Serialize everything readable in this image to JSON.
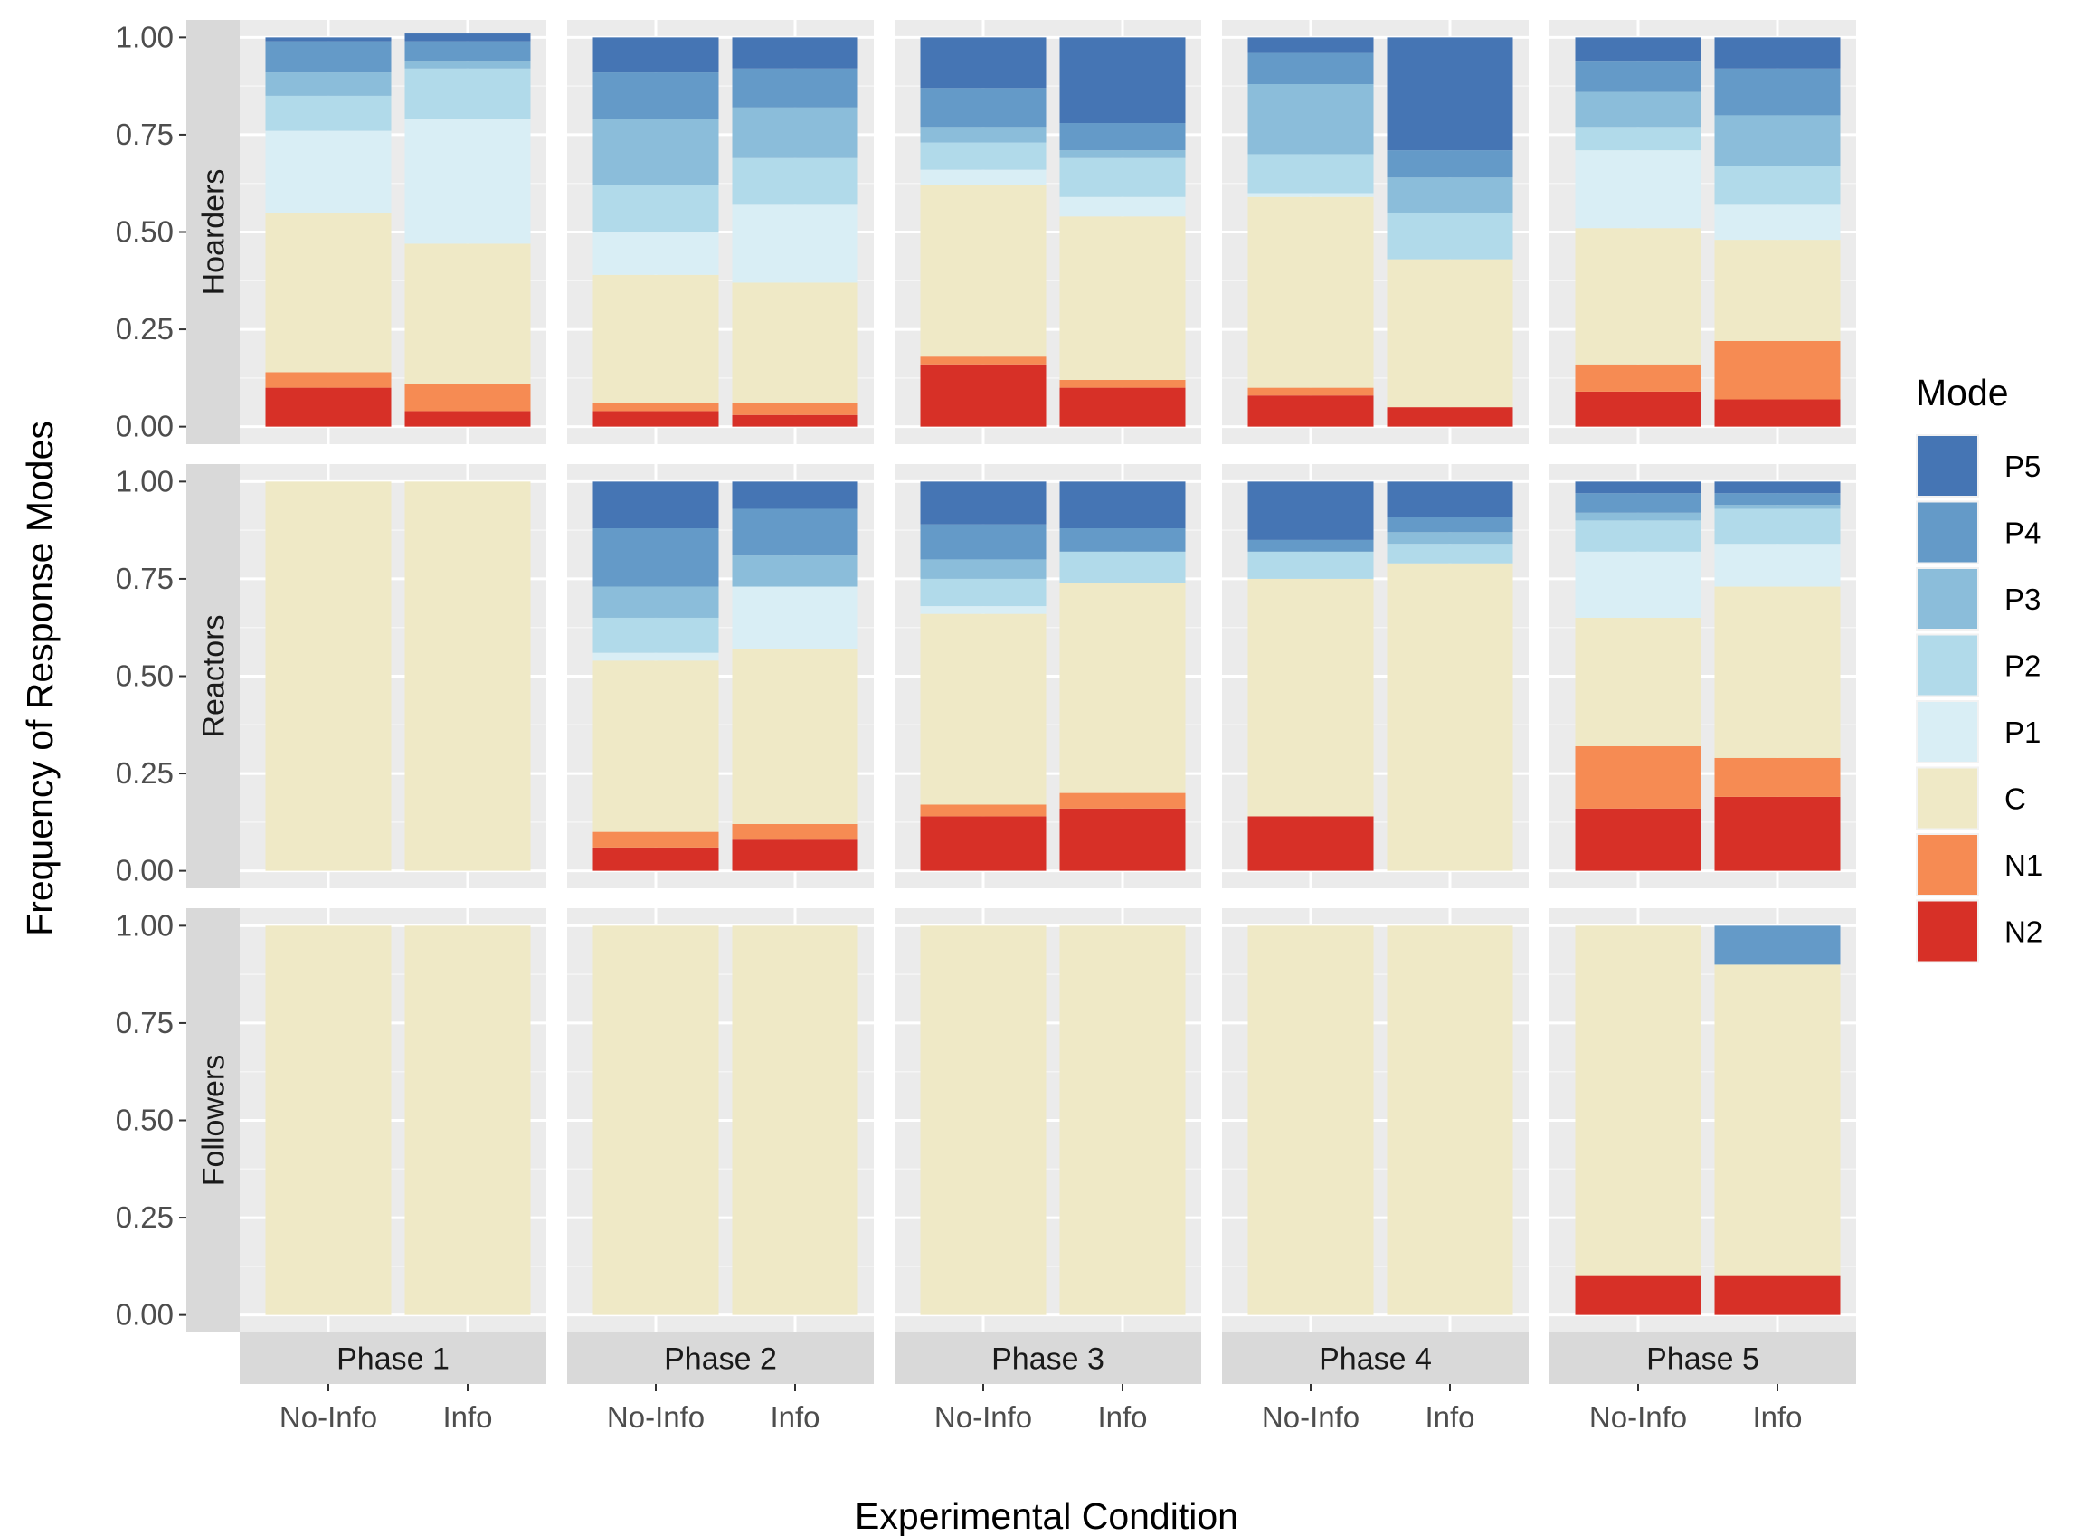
{
  "chart_data": {
    "type": "bar",
    "stacked": true,
    "facet_rows": [
      "Hoarders",
      "Reactors",
      "Followers"
    ],
    "facet_cols": [
      "Phase 1",
      "Phase 2",
      "Phase 3",
      "Phase 4",
      "Phase 5"
    ],
    "categories": [
      "No-Info",
      "Info"
    ],
    "xlabel": "Experimental Condition",
    "ylabel": "Frequency of Response Modes",
    "ylim": [
      0,
      1
    ],
    "y_ticks": [
      "0.00",
      "0.25",
      "0.50",
      "0.75",
      "1.00"
    ],
    "legend": {
      "title": "Mode",
      "position": "right",
      "items": [
        {
          "name": "P5",
          "color": "#4575b4"
        },
        {
          "name": "P4",
          "color": "#649ac8"
        },
        {
          "name": "P3",
          "color": "#8bbdda"
        },
        {
          "name": "P2",
          "color": "#b1daea"
        },
        {
          "name": "P1",
          "color": "#d9eef5"
        },
        {
          "name": "C",
          "color": "#efe9c6"
        },
        {
          "name": "N1",
          "color": "#f68b53"
        },
        {
          "name": "N2",
          "color": "#d73027"
        }
      ]
    },
    "stack_order_bottom_to_top": [
      "N2",
      "N1",
      "C",
      "P1",
      "P2",
      "P3",
      "P4",
      "P5"
    ],
    "panels": [
      {
        "row": "Hoarders",
        "col": "Phase 1",
        "bars": [
          {
            "condition": "No-Info",
            "values": [
              0.1,
              0.04,
              0.41,
              0.21,
              0.09,
              0.06,
              0.08,
              0.01
            ]
          },
          {
            "condition": "Info",
            "values": [
              0.04,
              0.07,
              0.36,
              0.32,
              0.13,
              0.02,
              0.05,
              0.02
            ]
          }
        ]
      },
      {
        "row": "Hoarders",
        "col": "Phase 2",
        "bars": [
          {
            "condition": "No-Info",
            "values": [
              0.04,
              0.02,
              0.33,
              0.11,
              0.12,
              0.17,
              0.12,
              0.09
            ]
          },
          {
            "condition": "Info",
            "values": [
              0.03,
              0.03,
              0.31,
              0.2,
              0.12,
              0.13,
              0.1,
              0.08
            ]
          }
        ]
      },
      {
        "row": "Hoarders",
        "col": "Phase 3",
        "bars": [
          {
            "condition": "No-Info",
            "values": [
              0.16,
              0.02,
              0.44,
              0.04,
              0.07,
              0.04,
              0.1,
              0.13
            ]
          },
          {
            "condition": "Info",
            "values": [
              0.1,
              0.02,
              0.42,
              0.05,
              0.1,
              0.02,
              0.07,
              0.22
            ]
          }
        ]
      },
      {
        "row": "Hoarders",
        "col": "Phase 4",
        "bars": [
          {
            "condition": "No-Info",
            "values": [
              0.08,
              0.02,
              0.49,
              0.01,
              0.1,
              0.18,
              0.08,
              0.04
            ]
          },
          {
            "condition": "Info",
            "values": [
              0.05,
              0.0,
              0.38,
              0.0,
              0.12,
              0.09,
              0.07,
              0.29
            ]
          }
        ]
      },
      {
        "row": "Hoarders",
        "col": "Phase 5",
        "bars": [
          {
            "condition": "No-Info",
            "values": [
              0.09,
              0.07,
              0.35,
              0.2,
              0.06,
              0.09,
              0.08,
              0.06
            ]
          },
          {
            "condition": "Info",
            "values": [
              0.07,
              0.15,
              0.26,
              0.09,
              0.1,
              0.13,
              0.12,
              0.08
            ]
          }
        ]
      },
      {
        "row": "Reactors",
        "col": "Phase 1",
        "bars": [
          {
            "condition": "No-Info",
            "values": [
              0.0,
              0.0,
              1.0,
              0.0,
              0.0,
              0.0,
              0.0,
              0.0
            ]
          },
          {
            "condition": "Info",
            "values": [
              0.0,
              0.0,
              1.0,
              0.0,
              0.0,
              0.0,
              0.0,
              0.0
            ]
          }
        ]
      },
      {
        "row": "Reactors",
        "col": "Phase 2",
        "bars": [
          {
            "condition": "No-Info",
            "values": [
              0.06,
              0.04,
              0.44,
              0.02,
              0.09,
              0.08,
              0.15,
              0.12
            ]
          },
          {
            "condition": "Info",
            "values": [
              0.08,
              0.04,
              0.45,
              0.16,
              0.0,
              0.08,
              0.12,
              0.07
            ]
          }
        ]
      },
      {
        "row": "Reactors",
        "col": "Phase 3",
        "bars": [
          {
            "condition": "No-Info",
            "values": [
              0.14,
              0.03,
              0.49,
              0.02,
              0.07,
              0.05,
              0.09,
              0.11
            ]
          },
          {
            "condition": "Info",
            "values": [
              0.16,
              0.04,
              0.54,
              0.0,
              0.08,
              0.0,
              0.06,
              0.12
            ]
          }
        ]
      },
      {
        "row": "Reactors",
        "col": "Phase 4",
        "bars": [
          {
            "condition": "No-Info",
            "values": [
              0.14,
              0.0,
              0.61,
              0.0,
              0.07,
              0.0,
              0.03,
              0.15
            ]
          },
          {
            "condition": "Info",
            "values": [
              0.0,
              0.0,
              0.79,
              0.0,
              0.05,
              0.03,
              0.04,
              0.09
            ]
          }
        ]
      },
      {
        "row": "Reactors",
        "col": "Phase 5",
        "bars": [
          {
            "condition": "No-Info",
            "values": [
              0.16,
              0.16,
              0.33,
              0.17,
              0.08,
              0.02,
              0.05,
              0.03
            ]
          },
          {
            "condition": "Info",
            "values": [
              0.19,
              0.1,
              0.44,
              0.11,
              0.09,
              0.01,
              0.03,
              0.03
            ]
          }
        ]
      },
      {
        "row": "Followers",
        "col": "Phase 1",
        "bars": [
          {
            "condition": "No-Info",
            "values": [
              0.0,
              0.0,
              1.0,
              0.0,
              0.0,
              0.0,
              0.0,
              0.0
            ]
          },
          {
            "condition": "Info",
            "values": [
              0.0,
              0.0,
              1.0,
              0.0,
              0.0,
              0.0,
              0.0,
              0.0
            ]
          }
        ]
      },
      {
        "row": "Followers",
        "col": "Phase 2",
        "bars": [
          {
            "condition": "No-Info",
            "values": [
              0.0,
              0.0,
              1.0,
              0.0,
              0.0,
              0.0,
              0.0,
              0.0
            ]
          },
          {
            "condition": "Info",
            "values": [
              0.0,
              0.0,
              1.0,
              0.0,
              0.0,
              0.0,
              0.0,
              0.0
            ]
          }
        ]
      },
      {
        "row": "Followers",
        "col": "Phase 3",
        "bars": [
          {
            "condition": "No-Info",
            "values": [
              0.0,
              0.0,
              1.0,
              0.0,
              0.0,
              0.0,
              0.0,
              0.0
            ]
          },
          {
            "condition": "Info",
            "values": [
              0.0,
              0.0,
              1.0,
              0.0,
              0.0,
              0.0,
              0.0,
              0.0
            ]
          }
        ]
      },
      {
        "row": "Followers",
        "col": "Phase 4",
        "bars": [
          {
            "condition": "No-Info",
            "values": [
              0.0,
              0.0,
              1.0,
              0.0,
              0.0,
              0.0,
              0.0,
              0.0
            ]
          },
          {
            "condition": "Info",
            "values": [
              0.0,
              0.0,
              1.0,
              0.0,
              0.0,
              0.0,
              0.0,
              0.0
            ]
          }
        ]
      },
      {
        "row": "Followers",
        "col": "Phase 5",
        "bars": [
          {
            "condition": "No-Info",
            "values": [
              0.1,
              0.0,
              0.9,
              0.0,
              0.0,
              0.0,
              0.0,
              0.0
            ]
          },
          {
            "condition": "Info",
            "values": [
              0.1,
              0.0,
              0.8,
              0.0,
              0.0,
              0.0,
              0.1,
              0.0
            ]
          }
        ]
      }
    ]
  }
}
